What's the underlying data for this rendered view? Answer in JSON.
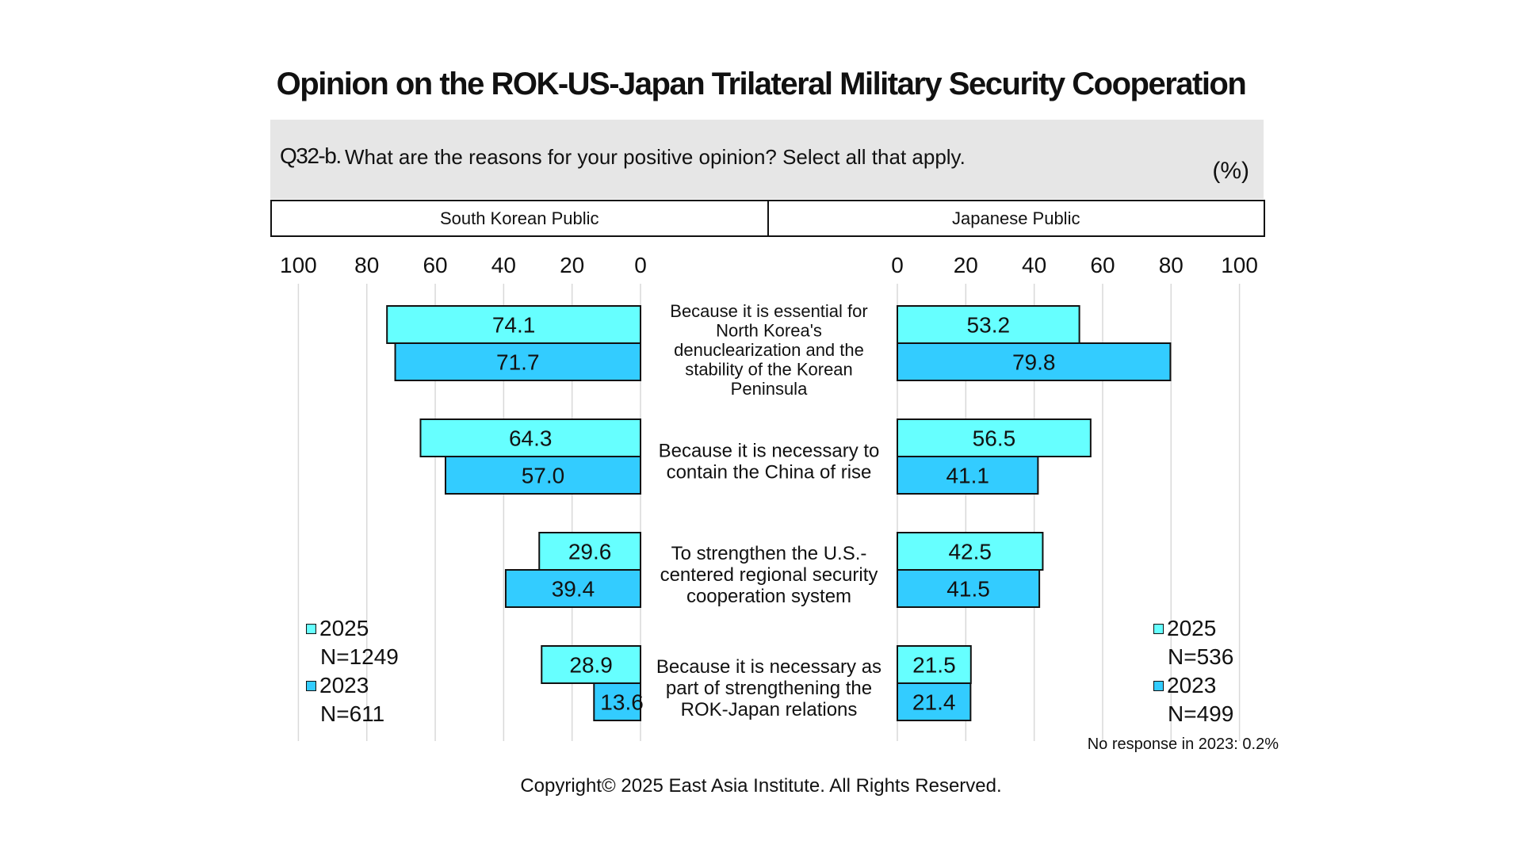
{
  "title": "Opinion on the ROK-US-Japan Trilateral Military Security Cooperation",
  "question": {
    "id": "Q32-b.",
    "text": "What are the reasons for your positive opinion? Select all that apply.",
    "unit": "(%)"
  },
  "panels": {
    "left": "South Korean Public",
    "right": "Japanese Public"
  },
  "legend": {
    "left": [
      {
        "label": "2025",
        "n": "N=1249"
      },
      {
        "label": "2023",
        "n": "N=611"
      }
    ],
    "right": [
      {
        "label": "2025",
        "n": "N=536"
      },
      {
        "label": "2023",
        "n": "N=499"
      }
    ]
  },
  "note": "No response in 2023: 0.2%",
  "copyright": "Copyright© 2025 East Asia Institute. All Rights Reserved.",
  "colors": {
    "y2025": "#66ffff",
    "y2023": "#33ccff",
    "grid": "#d9d9d9",
    "border": "#111111"
  },
  "chart_data": {
    "type": "bar",
    "orientation": "horizontal",
    "layout": "butterfly",
    "xlim": [
      0,
      100
    ],
    "ticks": [
      0,
      20,
      40,
      60,
      80,
      100
    ],
    "categories": [
      "Because it is essential for North Korea's denuclearization and the stability of the Korean Peninsula",
      "Because it is necessary to contain the China of rise",
      "To strengthen the U.S.-centered regional security cooperation system",
      "Because it is necessary as part of strengthening the ROK-Japan relations"
    ],
    "category_lines": [
      [
        "Because it is essential for",
        "North Korea's",
        "denuclearization and the",
        "stability of the Korean",
        "Peninsula"
      ],
      [
        "Because it is necessary to",
        "contain the China of rise"
      ],
      [
        "To strengthen the U.S.-",
        "centered regional security",
        "cooperation system"
      ],
      [
        "Because it is necessary as",
        "part of strengthening the",
        "ROK-Japan relations"
      ]
    ],
    "south_korea": {
      "2025": [
        74.1,
        64.3,
        29.6,
        28.9
      ],
      "2023": [
        71.7,
        57.0,
        39.4,
        13.6
      ]
    },
    "japan": {
      "2025": [
        53.2,
        56.5,
        42.5,
        21.5
      ],
      "2023": [
        79.8,
        41.1,
        41.5,
        21.4
      ]
    }
  }
}
